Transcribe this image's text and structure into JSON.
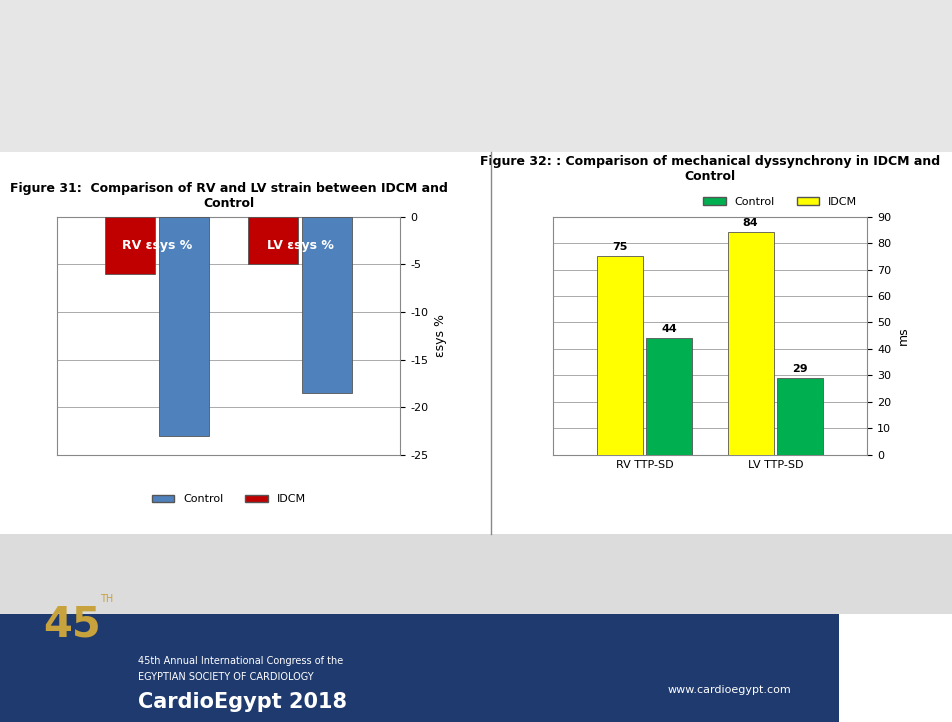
{
  "chart_data": [
    {
      "type": "bar",
      "title": "Figure 31:  Comparison of RV and LV strain between IDCM and Control",
      "categories": [
        "RV εsys %",
        "LV εsys %"
      ],
      "series": [
        {
          "name": "Control",
          "color": "#4f81bd",
          "values": [
            -23,
            -18.5
          ]
        },
        {
          "name": "IDCM",
          "color": "#c00000",
          "values": [
            -6,
            -5
          ]
        }
      ],
      "y_label": "εsys %",
      "ylim": [
        -25,
        0
      ],
      "yticks": [
        -25,
        -20,
        -15,
        -10,
        -5,
        0
      ],
      "grid": true,
      "legend": "lower center",
      "data_labels": false
    },
    {
      "type": "bar",
      "title": "Figure 32: : Comparison of mechanical dyssynchrony in IDCM and Control",
      "categories": [
        "RV TTP-SD",
        "LV TTP-SD"
      ],
      "series": [
        {
          "name": "Control",
          "color": "#00b050",
          "values": [
            44,
            29
          ]
        },
        {
          "name": "IDCM",
          "color": "#ffff00",
          "values": [
            75,
            84
          ]
        }
      ],
      "y_label": "ms",
      "ylim": [
        0,
        90
      ],
      "yticks": [
        0,
        10,
        20,
        30,
        40,
        50,
        60,
        70,
        80,
        90
      ],
      "grid": true,
      "legend": "lower right",
      "data_labels": true
    }
  ],
  "footer": {
    "logo": "45",
    "logo_suffix": "TH",
    "line1": "45th Annual International Congress of the",
    "line2": "EGYPTIAN SOCIETY OF CARDIOLOGY",
    "line3": "CardioEgypt 2018",
    "url": "www.cardioegypt.com"
  }
}
